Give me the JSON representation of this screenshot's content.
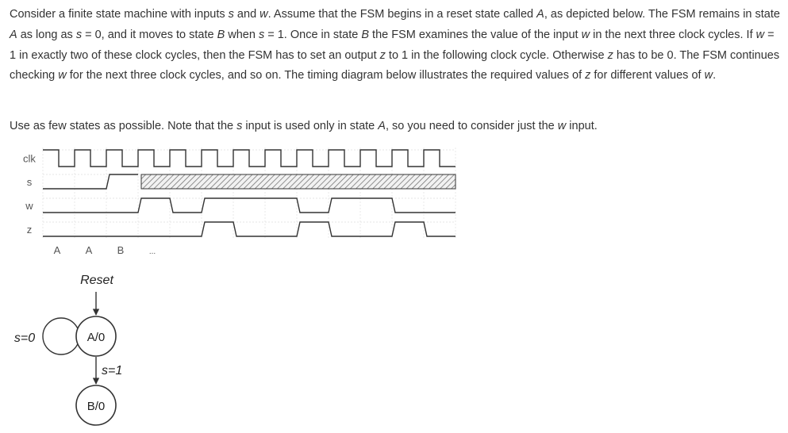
{
  "problem": {
    "paragraph1": [
      {
        "t": "Consider a finite state machine with inputs "
      },
      {
        "t": "s",
        "i": true
      },
      {
        "t": " and "
      },
      {
        "t": "w",
        "i": true
      },
      {
        "t": ". Assume that the FSM begins in a reset state called "
      },
      {
        "t": "A",
        "i": true
      },
      {
        "t": ", as depicted below. The FSM remains in state "
      },
      {
        "t": "A",
        "i": true
      },
      {
        "t": " as long as "
      },
      {
        "t": "s",
        "i": true
      },
      {
        "t": " = 0, and it moves to state "
      },
      {
        "t": "B",
        "i": true
      },
      {
        "t": " when "
      },
      {
        "t": "s",
        "i": true
      },
      {
        "t": " = 1. Once in state "
      },
      {
        "t": "B",
        "i": true
      },
      {
        "t": " the FSM examines the value of the input "
      },
      {
        "t": "w",
        "i": true
      },
      {
        "t": " in the next three clock cycles. If "
      },
      {
        "t": "w",
        "i": true
      },
      {
        "t": " = 1 in exactly two of these clock cycles, then the FSM has to set an output "
      },
      {
        "t": "z",
        "i": true
      },
      {
        "t": " to 1 in the following clock cycle. Otherwise "
      },
      {
        "t": "z",
        "i": true
      },
      {
        "t": " has to be 0. The FSM continues checking "
      },
      {
        "t": "w",
        "i": true
      },
      {
        "t": " for the next three clock cycles, and so on. The timing diagram below illustrates the required values of "
      },
      {
        "t": "z",
        "i": true
      },
      {
        "t": " for different values of "
      },
      {
        "t": "w",
        "i": true
      },
      {
        "t": "."
      }
    ],
    "paragraph2": [
      {
        "t": "Use as few states as possible. Note that the "
      },
      {
        "t": "s",
        "i": true
      },
      {
        "t": " input is used only in state "
      },
      {
        "t": "A",
        "i": true
      },
      {
        "t": ", so you need to consider just the "
      },
      {
        "t": "w",
        "i": true
      },
      {
        "t": " input."
      }
    ]
  },
  "timing": {
    "signals": [
      {
        "name": "clk",
        "kind": "clock",
        "cycles": 13
      },
      {
        "name": "s",
        "kind": "step",
        "levels": [
          0,
          0,
          1
        ],
        "after": "dont-care"
      },
      {
        "name": "w",
        "kind": "step",
        "levels": [
          0,
          0,
          0,
          1,
          0,
          1,
          1,
          1,
          0,
          1,
          1,
          0,
          0
        ]
      },
      {
        "name": "z",
        "kind": "step",
        "levels": [
          0,
          0,
          0,
          0,
          0,
          1,
          0,
          0,
          1,
          0,
          0,
          1,
          0
        ]
      }
    ],
    "state_labels": [
      "A",
      "A",
      "B",
      "..."
    ]
  },
  "fsm": {
    "reset_label": "Reset",
    "states": [
      {
        "label": "A/0"
      },
      {
        "label": "B/0"
      }
    ],
    "self_loop_label": "s=0",
    "transition_label": "s=1"
  }
}
